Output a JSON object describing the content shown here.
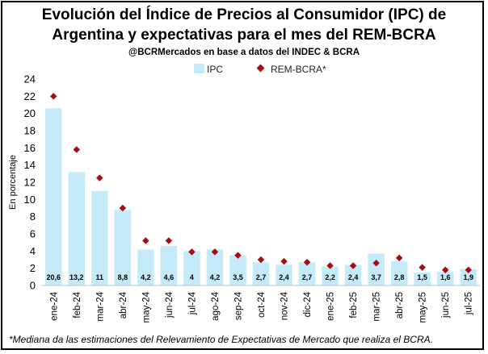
{
  "chart_data": {
    "type": "bar",
    "title": "Evolución del Índice de Precios al Consumidor (IPC) de",
    "title_line2": "Argentina y expectativas para el mes del REM-BCRA",
    "subtitle": "@BCRMercados  en base a datos del INDEC & BCRA",
    "ylabel": "En porcentaje",
    "xlabel": "",
    "ylim": [
      0,
      24
    ],
    "yticks": [
      0,
      2,
      4,
      6,
      8,
      10,
      12,
      14,
      16,
      18,
      20,
      22,
      24
    ],
    "grid": false,
    "legend_position": "top",
    "categories": [
      "ene-24",
      "feb-24",
      "mar-24",
      "abr-24",
      "may-24",
      "jun-24",
      "jul-24",
      "ago-24",
      "sep-24",
      "oct-24",
      "nov-24",
      "dic-24",
      "ene-25",
      "feb-25",
      "mar-25",
      "abr-25",
      "may-25",
      "jun-25",
      "jul-25"
    ],
    "series": [
      {
        "name": "IPC",
        "kind": "bar",
        "color": "#c5ebfa",
        "values": [
          20.6,
          13.2,
          11,
          8.8,
          4.2,
          4.6,
          4,
          4.2,
          3.5,
          2.7,
          2.4,
          2.7,
          2.2,
          2.4,
          3.7,
          2.8,
          1.5,
          1.6,
          1.9
        ],
        "labels": [
          "20,6",
          "13,2",
          "11",
          "8,8",
          "4,2",
          "4,6",
          "4",
          "4,2",
          "3,5",
          "2,7",
          "2,4",
          "2,7",
          "2,2",
          "2,4",
          "3,7",
          "2,8",
          "1,5",
          "1,6",
          "1,9"
        ]
      },
      {
        "name": "REM-BCRA*",
        "kind": "marker",
        "color": "#a50f0f",
        "values": [
          22,
          15.8,
          12.5,
          9,
          5.2,
          5.2,
          3.9,
          3.9,
          3.5,
          3.0,
          2.8,
          2.7,
          2.3,
          2.3,
          2.6,
          3.2,
          2.1,
          1.8,
          1.8
        ]
      }
    ],
    "footnote": "*Mediana da las estimaciones del Relevamiento de Expectativas de Mercado que realiza el BCRA."
  }
}
